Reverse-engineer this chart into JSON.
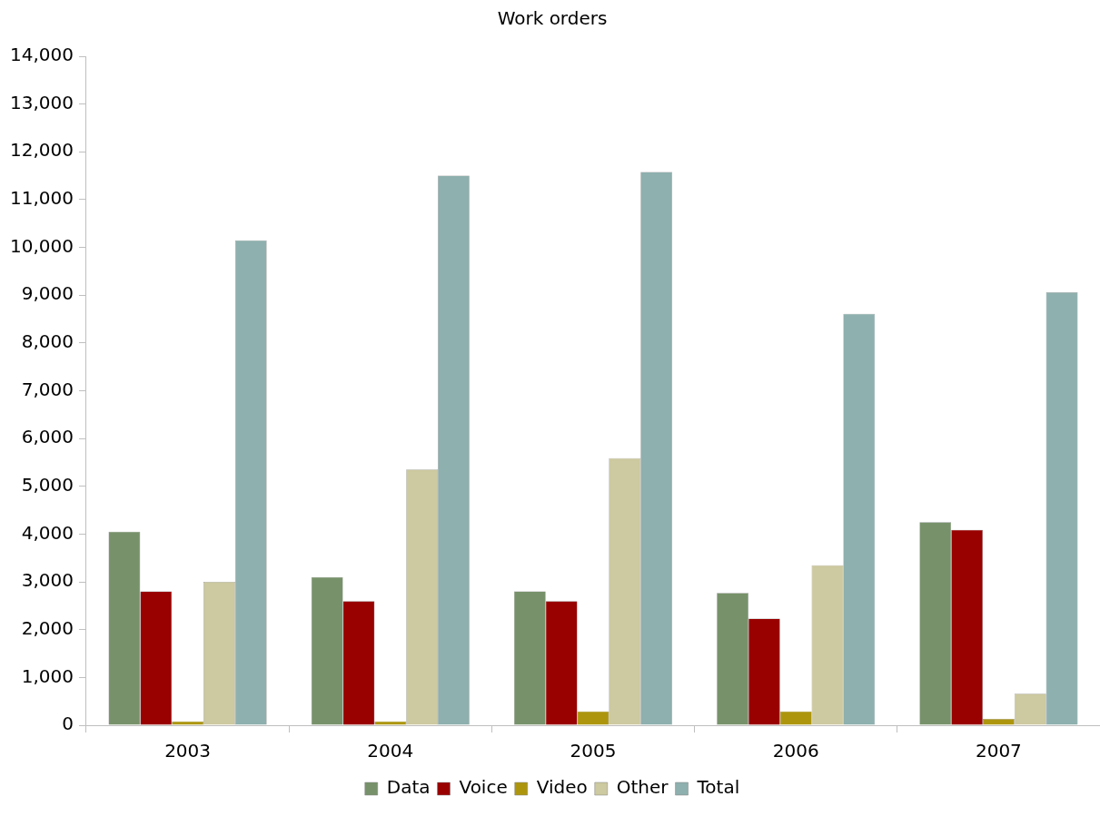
{
  "chart_data": {
    "type": "bar",
    "title": "Work orders",
    "categories": [
      "2003",
      "2004",
      "2005",
      "2006",
      "2007"
    ],
    "series": [
      {
        "name": "Data",
        "color": "#77926a",
        "values": [
          4050,
          3100,
          2800,
          2770,
          4250
        ]
      },
      {
        "name": "Voice",
        "color": "#990000",
        "values": [
          2800,
          2600,
          2600,
          2230,
          4090
        ]
      },
      {
        "name": "Video",
        "color": "#ad960e",
        "values": [
          80,
          80,
          290,
          290,
          135
        ]
      },
      {
        "name": "Other",
        "color": "#cdc9a0",
        "values": [
          3000,
          5350,
          5590,
          3350,
          660
        ]
      },
      {
        "name": "Total",
        "color": "#8eb0ae",
        "values": [
          10150,
          11500,
          11580,
          8610,
          9060
        ]
      }
    ],
    "ylim": [
      0,
      14000
    ],
    "yticks": [
      {
        "value": 0,
        "label": "0"
      },
      {
        "value": 1000,
        "label": "1,000"
      },
      {
        "value": 2000,
        "label": "2,000"
      },
      {
        "value": 3000,
        "label": "3,000"
      },
      {
        "value": 4000,
        "label": "4,000"
      },
      {
        "value": 5000,
        "label": "5,000"
      },
      {
        "value": 6000,
        "label": "6,000"
      },
      {
        "value": 7000,
        "label": "7,000"
      },
      {
        "value": 8000,
        "label": "8,000"
      },
      {
        "value": 9000,
        "label": "9,000"
      },
      {
        "value": 10000,
        "label": "10,000"
      },
      {
        "value": 11000,
        "label": "11,000"
      },
      {
        "value": 12000,
        "label": "12,000"
      },
      {
        "value": 13000,
        "label": "13,000"
      },
      {
        "value": 14000,
        "label": "14,000"
      }
    ],
    "grid": false,
    "legend": "bottom"
  }
}
